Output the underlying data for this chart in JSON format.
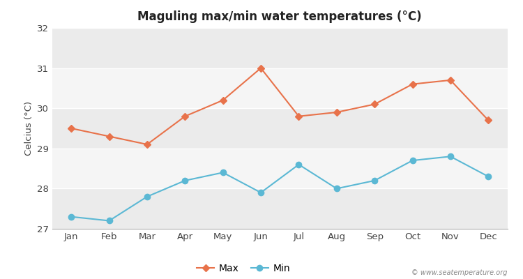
{
  "months": [
    "Jan",
    "Feb",
    "Mar",
    "Apr",
    "May",
    "Jun",
    "Jul",
    "Aug",
    "Sep",
    "Oct",
    "Nov",
    "Dec"
  ],
  "max_temps": [
    29.5,
    29.3,
    29.1,
    29.8,
    30.2,
    31.0,
    29.8,
    29.9,
    30.1,
    30.6,
    30.7,
    29.7
  ],
  "min_temps": [
    27.3,
    27.2,
    27.8,
    28.2,
    28.4,
    27.9,
    28.6,
    28.0,
    28.2,
    28.7,
    28.8,
    28.3
  ],
  "max_color": "#E8724A",
  "min_color": "#5BB8D4",
  "title": "Maguling max/min water temperatures (°C)",
  "ylabel": "Celcius (°C)",
  "ylim": [
    27,
    32
  ],
  "yticks": [
    27,
    28,
    29,
    30,
    31,
    32
  ],
  "background_color": "#ffffff",
  "plot_bg_color": "#ebebeb",
  "band_color_light": "#f5f5f5",
  "band_color_dark": "#ebebeb",
  "grid_color": "#ffffff",
  "watermark": "© www.seatemperature.org",
  "legend_labels": [
    "Max",
    "Min"
  ]
}
